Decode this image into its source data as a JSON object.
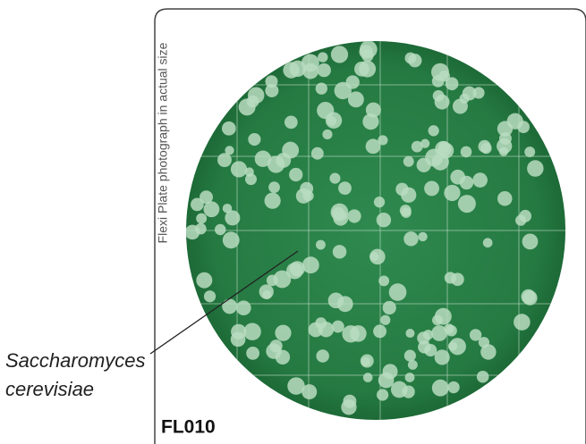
{
  "side_caption": "Flexi Plate photograph in actual size",
  "organism": {
    "line1": "Saccharomyces",
    "line2": "cerevisiae"
  },
  "product_code": "FL010"
}
